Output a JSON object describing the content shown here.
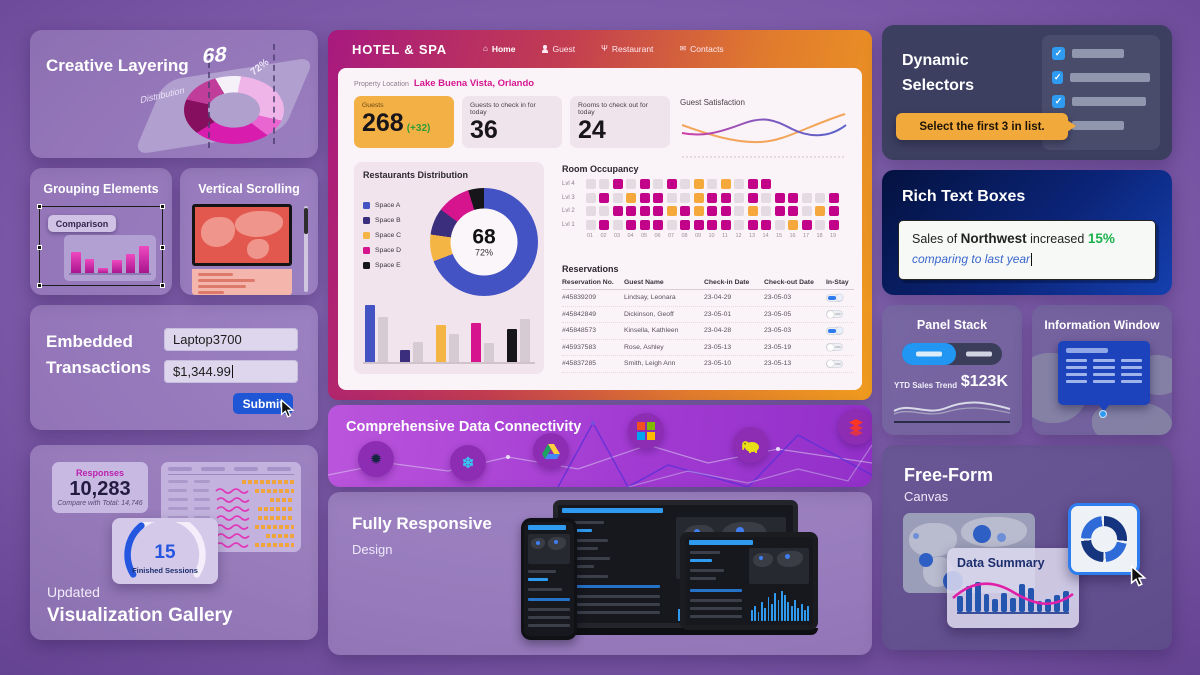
{
  "creative": {
    "title": "Creative Layering",
    "value": "68",
    "pct": "72%",
    "axis": "Distribution"
  },
  "grouping": {
    "title": "Grouping Elements",
    "chip": "Comparison",
    "bars": [
      22,
      15,
      6,
      14,
      20,
      28
    ]
  },
  "vscroll": {
    "title": "Vertical Scrolling"
  },
  "embedded": {
    "title1": "Embedded",
    "title2": "Transactions",
    "product": "Laptop3700",
    "price": "$1,344.99",
    "submit": "Submit"
  },
  "gallery": {
    "kpi": {
      "label": "Responses",
      "value": "10,283",
      "sub": "Compare with Total: 14,746"
    },
    "gauge": {
      "value": "15",
      "label": "Finished Sessions"
    },
    "updated": "Updated",
    "title": "Visualization Gallery",
    "table_rows": [
      {
        "squiggle": false,
        "orange": 52
      },
      {
        "squiggle": true,
        "orange": 40
      },
      {
        "squiggle": true,
        "orange": 24
      },
      {
        "squiggle": true,
        "orange": 36
      },
      {
        "squiggle": true,
        "orange": 36
      },
      {
        "squiggle": true,
        "orange": 40
      },
      {
        "squiggle": true,
        "orange": 28
      },
      {
        "squiggle": true,
        "orange": 40
      }
    ]
  },
  "hotel": {
    "brand": "HOTEL & SPA",
    "nav": [
      {
        "label": "Home",
        "icon": "home",
        "active": true
      },
      {
        "label": "Guest",
        "icon": "guest",
        "active": false
      },
      {
        "label": "Restaurant",
        "icon": "restaurant",
        "active": false
      },
      {
        "label": "Contacts",
        "icon": "contacts",
        "active": false
      }
    ],
    "property_label": "Property Location",
    "property_value": "Lake Buena Vista, Orlando",
    "kpis": [
      {
        "label": "Guests",
        "value": "268",
        "delta": "(+32)"
      },
      {
        "label": "Guests to check in for today",
        "value": "36"
      },
      {
        "label": "Rooms to check out for today",
        "value": "24"
      }
    ],
    "satisfaction_title": "Guest Satisfaction",
    "restaurants_title": "Restaurants Distribution",
    "legend": [
      {
        "label": "Space A",
        "color": "#4353c4"
      },
      {
        "label": "Space B",
        "color": "#3b2f7d"
      },
      {
        "label": "Space C",
        "color": "#f5b544"
      },
      {
        "label": "Space D",
        "color": "#d6148e"
      },
      {
        "label": "Space E",
        "color": "#15151a"
      }
    ],
    "donut": {
      "value": "68",
      "pct": "72%",
      "start": 15,
      "segments": [
        {
          "color": "#4353c4",
          "deg": 234
        },
        {
          "color": "#f5b544",
          "deg": 29
        },
        {
          "color": "#3b2f7d",
          "deg": 29
        },
        {
          "color": "#d6148e",
          "deg": 36
        },
        {
          "color": "#15151a",
          "deg": 32
        }
      ]
    },
    "bar_chart": {
      "groups": [
        {
          "color": "#4353c4",
          "value": 92,
          "gray": 72
        },
        {
          "color": "#3b2f7d",
          "value": 20,
          "gray": 33
        },
        {
          "color": "#f5b544",
          "value": 60,
          "gray": 45
        },
        {
          "color": "#d6148e",
          "value": 63,
          "gray": 31
        },
        {
          "color": "#15151a",
          "value": 53,
          "gray": 70
        }
      ]
    },
    "occupancy": {
      "title": "Room Occupancy",
      "row_labels": [
        "Lvl 4",
        "Lvl 3",
        "Lvl 2",
        "Lvl 1"
      ],
      "cells": [
        "ggmgmgmgogogmm.....",
        "gmgommggommgmgmmggm",
        "ggmmmmomommgogmmgom",
        "gmgmmmgmmmmgmmgomgm"
      ],
      "col_labels": [
        "01",
        "02",
        "03",
        "04",
        "05",
        "06",
        "07",
        "08",
        "09",
        "10",
        "11",
        "12",
        "13",
        "14",
        "15",
        "16",
        "17",
        "18",
        "19"
      ]
    },
    "reservations": {
      "title": "Reservations",
      "headers": [
        "Reservation No.",
        "Guest Name",
        "Check-in Date",
        "Check-out Date",
        "In-Stay"
      ],
      "rows": [
        {
          "no": "#45839209",
          "name": "Lindsay, Leonara",
          "checkin": "23-04-29",
          "checkout": "23-05-03",
          "instay": true
        },
        {
          "no": "#45842849",
          "name": "Dickinson, Geoff",
          "checkin": "23-05-01",
          "checkout": "23-05-05",
          "instay": false
        },
        {
          "no": "#45848573",
          "name": "Kinsella, Kathleen",
          "checkin": "23-04-28",
          "checkout": "23-05-03",
          "instay": true
        },
        {
          "no": "#45937583",
          "name": "Rose, Ashley",
          "checkin": "23-05-13",
          "checkout": "23-05-19",
          "instay": false
        },
        {
          "no": "#45837285",
          "name": "Smith, Leigh Ann",
          "checkin": "23-05-10",
          "checkout": "23-05-13",
          "instay": false
        }
      ]
    }
  },
  "connectivity": {
    "title": "Comprehensive Data Connectivity",
    "sources": [
      "spark",
      "snowflake",
      "google-drive",
      "microsoft",
      "hadoop",
      "databricks"
    ]
  },
  "responsive": {
    "title": "Fully Responsive",
    "subtitle": "Design"
  },
  "selectors": {
    "title1": "Dynamic",
    "title2": "Selectors",
    "tooltip": "Select the first 3 in list.",
    "items": [
      {
        "checked": true,
        "bar": 52
      },
      {
        "checked": true,
        "bar": 92
      },
      {
        "checked": true,
        "bar": 74
      },
      {
        "checked": false,
        "bar": 52
      }
    ]
  },
  "richtext": {
    "title": "Rich Text Boxes",
    "prefix": "Sales of ",
    "bold": "Northwest",
    "mid": " increased ",
    "pct": "15%",
    "line2": "comparing to last year"
  },
  "panelstack": {
    "title": "Panel Stack",
    "label": "YTD Sales Trend",
    "value": "$123K"
  },
  "infowindow": {
    "title": "Information Window"
  },
  "freeform": {
    "title": "Free-Form",
    "subtitle": "Canvas",
    "summary": "Data Summary",
    "bars": [
      16,
      26,
      30,
      18,
      13,
      19,
      14,
      28,
      24,
      11,
      13,
      17,
      21
    ]
  },
  "colors": {
    "occupied": "#c2038a",
    "reserved": "#f5a83c",
    "vacant": "#e4dae1",
    "accent_blue": "#2e9bf0",
    "accent_orange": "#f2a93b",
    "positive_green": "#19b24b"
  }
}
